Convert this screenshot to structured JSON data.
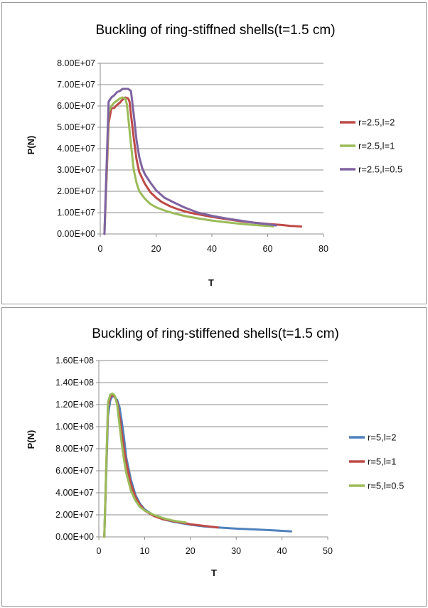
{
  "chart_data": [
    {
      "type": "line",
      "title": "Buckling of ring-stiffned shells(t=1.5 cm)",
      "xlabel": "T",
      "ylabel": "P(N)",
      "xlim": [
        0,
        80
      ],
      "ylim": [
        0,
        80000000
      ],
      "xticks": [
        "0",
        "20",
        "40",
        "60",
        "80"
      ],
      "yticks": [
        "0.00E+00",
        "1.00E+07",
        "2.00E+07",
        "3.00E+07",
        "4.00E+07",
        "5.00E+07",
        "6.00E+07",
        "7.00E+07",
        "8.00E+07"
      ],
      "grid": "horizontal",
      "legend_position": "right",
      "series": [
        {
          "name": "r=2.5,l=2",
          "color": "#be4b48",
          "x": [
            1.5,
            3,
            4,
            5,
            6,
            7,
            8,
            9,
            10,
            10.5,
            11,
            12,
            13,
            14,
            16,
            18,
            20,
            22,
            25,
            28,
            32,
            36,
            40,
            45,
            50,
            55,
            60,
            65,
            68,
            72
          ],
          "y": [
            0,
            52000000,
            59000000,
            59000000,
            60500000,
            61500000,
            63000000,
            64000000,
            63500000,
            62000000,
            56000000,
            45000000,
            35000000,
            29000000,
            23500000,
            19500000,
            17000000,
            15000000,
            13000000,
            11500000,
            10000000,
            9000000,
            8000000,
            7000000,
            6000000,
            5300000,
            4700000,
            4200000,
            3800000,
            3500000
          ]
        },
        {
          "name": "r=2.5,l=1",
          "color": "#9bbb59",
          "x": [
            1.5,
            3,
            4,
            5,
            6,
            7,
            8,
            9,
            9.5,
            10,
            11,
            12,
            13,
            14,
            16,
            18,
            20,
            23,
            26,
            30,
            35,
            40,
            45,
            50,
            55,
            62
          ],
          "y": [
            0,
            57000000,
            60000000,
            61500000,
            62500000,
            63500000,
            64000000,
            63500000,
            61000000,
            55000000,
            42000000,
            30000000,
            24000000,
            20000000,
            16500000,
            14000000,
            12500000,
            11000000,
            9800000,
            8500000,
            7300000,
            6300000,
            5500000,
            4800000,
            4200000,
            3600000
          ]
        },
        {
          "name": "r=2.5,l=0.5",
          "color": "#7f63a1",
          "x": [
            1.5,
            3,
            4,
            5,
            6,
            7,
            8,
            9,
            10,
            11,
            12,
            13,
            14,
            15,
            16,
            18,
            20,
            23,
            26,
            30,
            35,
            40,
            45,
            50,
            55,
            60,
            63
          ],
          "y": [
            0,
            62000000,
            64000000,
            65000000,
            66500000,
            67000000,
            68000000,
            68000000,
            68000000,
            67000000,
            56000000,
            44000000,
            36000000,
            31000000,
            28000000,
            24000000,
            20500000,
            17000000,
            15000000,
            12500000,
            10000000,
            8500000,
            7300000,
            6300000,
            5300000,
            4600000,
            4000000
          ]
        }
      ]
    },
    {
      "type": "line",
      "title": "Buckling of ring-stiffened shells(t=1.5 cm)",
      "xlabel": "T",
      "ylabel": "P(N)",
      "xlim": [
        0,
        50
      ],
      "ylim": [
        0,
        160000000
      ],
      "xticks": [
        "0",
        "10",
        "20",
        "30",
        "40",
        "50"
      ],
      "yticks": [
        "0.00E+00",
        "2.00E+07",
        "4.00E+07",
        "6.00E+07",
        "8.00E+07",
        "1.00E+08",
        "1.20E+08",
        "1.40E+08",
        "1.60E+08"
      ],
      "grid": "horizontal",
      "legend_position": "right",
      "series": [
        {
          "name": "r=5,l=2",
          "color": "#4f81bd",
          "x": [
            1.2,
            2,
            2.5,
            3,
            3.5,
            4,
            4.5,
            5,
            5.5,
            6,
            7,
            8,
            9,
            10,
            12,
            14,
            16,
            18,
            20,
            23,
            26,
            30,
            34,
            38,
            42
          ],
          "y": [
            0,
            110000000,
            124000000,
            128000000,
            127000000,
            124000000,
            118000000,
            105000000,
            90000000,
            72000000,
            52000000,
            38000000,
            30000000,
            25000000,
            19500000,
            16000000,
            14000000,
            12500000,
            11000000,
            9500000,
            8500000,
            7500000,
            6800000,
            6000000,
            5000000
          ]
        },
        {
          "name": "r=5,l=1",
          "color": "#be4b48",
          "x": [
            1.2,
            2,
            2.5,
            3,
            3.5,
            4,
            4.5,
            5,
            5.5,
            6,
            7,
            8,
            9,
            10,
            12,
            14,
            16,
            18,
            20,
            23,
            26
          ],
          "y": [
            0,
            118000000,
            127000000,
            129000000,
            127000000,
            122000000,
            110000000,
            95000000,
            80000000,
            67000000,
            48000000,
            36000000,
            29000000,
            24000000,
            19000000,
            16000000,
            14500000,
            13000000,
            11500000,
            10000000,
            8500000
          ]
        },
        {
          "name": "r=5,l=0.5",
          "color": "#9bbb59",
          "x": [
            1.2,
            2,
            2.5,
            3,
            3.5,
            4,
            4.5,
            5,
            5.5,
            6,
            7,
            8,
            9,
            10,
            12,
            14,
            16,
            19
          ],
          "y": [
            0,
            122000000,
            129000000,
            130000000,
            128000000,
            120000000,
            102000000,
            85000000,
            70000000,
            58000000,
            42000000,
            33000000,
            27000000,
            24000000,
            20000000,
            17000000,
            15000000,
            13000000
          ]
        }
      ]
    }
  ]
}
